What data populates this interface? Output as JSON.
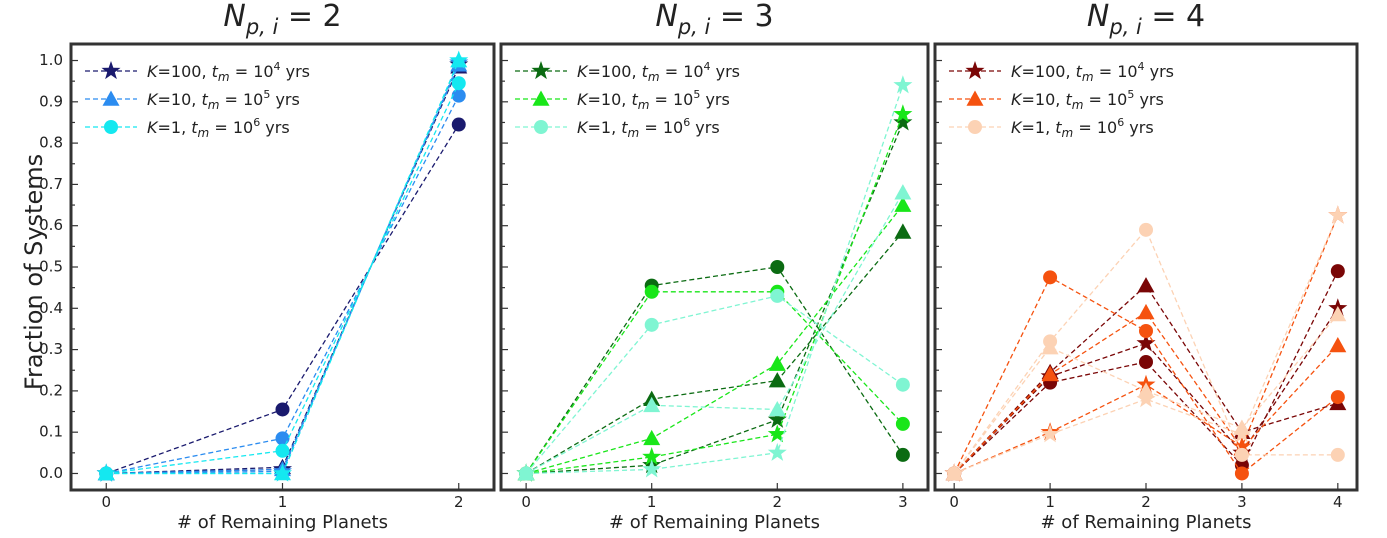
{
  "figure": {
    "ylabel": "Fraction of Systems",
    "xlabel": "# of Remaining Planets"
  },
  "chart_data": [
    {
      "type": "line",
      "title": {
        "main": "N",
        "sub": "p, i",
        "rhs": " = 2"
      },
      "xlabel": "# of Remaining Planets",
      "ylabel": "Fraction of Systems",
      "x": [
        0,
        1,
        2
      ],
      "xlim": [
        -0.2,
        2.2
      ],
      "ylim": [
        -0.04,
        1.04
      ],
      "yticks": [
        "0.0",
        "0.1",
        "0.2",
        "0.3",
        "0.4",
        "0.5",
        "0.6",
        "0.7",
        "0.8",
        "0.9",
        "1.0"
      ],
      "xticks": [
        "0",
        "1",
        "2"
      ],
      "legend": {
        "position": "top-left",
        "entries": [
          {
            "k": "K",
            "kv": "=100, ",
            "t": "t",
            "tsub": "m",
            "eq": " = 10",
            "exp": "4",
            "unit": " yrs",
            "marker": "star",
            "color": "#1a1a6e"
          },
          {
            "k": "K",
            "kv": "=10, ",
            "t": "t",
            "tsub": "m",
            "eq": " = 10",
            "exp": "5",
            "unit": " yrs",
            "marker": "triangle",
            "color": "#2b8cf0"
          },
          {
            "k": "K",
            "kv": "=1, ",
            "t": "t",
            "tsub": "m",
            "eq": " = 10",
            "exp": "6",
            "unit": " yrs",
            "marker": "circle",
            "color": "#14e8f0"
          }
        ]
      },
      "series": [
        {
          "marker": "circle",
          "color": "#1a1a6e",
          "values": [
            0.0,
            0.155,
            0.845
          ]
        },
        {
          "marker": "triangle",
          "color": "#1a1a6e",
          "values": [
            0.0,
            0.015,
            0.985
          ]
        },
        {
          "marker": "star",
          "color": "#1a1a6e",
          "values": [
            0.0,
            0.01,
            0.99
          ]
        },
        {
          "marker": "circle",
          "color": "#2b8cf0",
          "values": [
            0.0,
            0.085,
            0.915
          ]
        },
        {
          "marker": "triangle",
          "color": "#2b8cf0",
          "values": [
            0.0,
            0.01,
            0.99
          ]
        },
        {
          "marker": "star",
          "color": "#2b8cf0",
          "values": [
            0.0,
            0.005,
            0.995
          ]
        },
        {
          "marker": "circle",
          "color": "#14e8f0",
          "values": [
            0.0,
            0.055,
            0.945
          ]
        },
        {
          "marker": "triangle",
          "color": "#14e8f0",
          "values": [
            0.0,
            0.0,
            1.0
          ]
        },
        {
          "marker": "star",
          "color": "#14e8f0",
          "values": [
            0.0,
            0.0,
            1.0
          ]
        }
      ]
    },
    {
      "type": "line",
      "title": {
        "main": "N",
        "sub": "p, i",
        "rhs": " = 3"
      },
      "xlabel": "# of Remaining Planets",
      "x": [
        0,
        1,
        2,
        3
      ],
      "xlim": [
        -0.2,
        3.2
      ],
      "ylim": [
        -0.04,
        1.04
      ],
      "xticks": [
        "0",
        "1",
        "2",
        "3"
      ],
      "legend": {
        "position": "top-left",
        "entries": [
          {
            "k": "K",
            "kv": "=100, ",
            "t": "t",
            "tsub": "m",
            "eq": " = 10",
            "exp": "4",
            "unit": " yrs",
            "marker": "star",
            "color": "#0b6b12"
          },
          {
            "k": "K",
            "kv": "=10, ",
            "t": "t",
            "tsub": "m",
            "eq": " = 10",
            "exp": "5",
            "unit": " yrs",
            "marker": "triangle",
            "color": "#19e619"
          },
          {
            "k": "K",
            "kv": "=1, ",
            "t": "t",
            "tsub": "m",
            "eq": " = 10",
            "exp": "6",
            "unit": " yrs",
            "marker": "circle",
            "color": "#7ff5d2"
          }
        ]
      },
      "series": [
        {
          "marker": "circle",
          "color": "#0b6b12",
          "values": [
            0.0,
            0.455,
            0.5,
            0.045
          ]
        },
        {
          "marker": "triangle",
          "color": "#0b6b12",
          "values": [
            0.0,
            0.18,
            0.225,
            0.585
          ]
        },
        {
          "marker": "star",
          "color": "#0b6b12",
          "values": [
            0.0,
            0.02,
            0.13,
            0.85
          ]
        },
        {
          "marker": "circle",
          "color": "#19e619",
          "values": [
            0.0,
            0.44,
            0.44,
            0.12
          ]
        },
        {
          "marker": "triangle",
          "color": "#19e619",
          "values": [
            0.0,
            0.085,
            0.265,
            0.65
          ]
        },
        {
          "marker": "star",
          "color": "#19e619",
          "values": [
            0.0,
            0.04,
            0.095,
            0.87
          ]
        },
        {
          "marker": "circle",
          "color": "#7ff5d2",
          "values": [
            0.0,
            0.36,
            0.43,
            0.215
          ]
        },
        {
          "marker": "triangle",
          "color": "#7ff5d2",
          "values": [
            0.0,
            0.165,
            0.155,
            0.68
          ]
        },
        {
          "marker": "star",
          "color": "#7ff5d2",
          "values": [
            0.0,
            0.01,
            0.05,
            0.94
          ]
        }
      ]
    },
    {
      "type": "line",
      "title": {
        "main": "N",
        "sub": "p, i",
        "rhs": " = 4"
      },
      "xlabel": "# of Remaining Planets",
      "x": [
        0,
        1,
        2,
        3,
        4
      ],
      "xlim": [
        -0.2,
        4.2
      ],
      "ylim": [
        -0.04,
        1.04
      ],
      "xticks": [
        "0",
        "1",
        "2",
        "3",
        "4"
      ],
      "legend": {
        "position": "top-left",
        "entries": [
          {
            "k": "K",
            "kv": "=100, ",
            "t": "t",
            "tsub": "m",
            "eq": " = 10",
            "exp": "4",
            "unit": " yrs",
            "marker": "star",
            "color": "#7a0606"
          },
          {
            "k": "K",
            "kv": "=10, ",
            "t": "t",
            "tsub": "m",
            "eq": " = 10",
            "exp": "5",
            "unit": " yrs",
            "marker": "triangle",
            "color": "#f5520f"
          },
          {
            "k": "K",
            "kv": "=1, ",
            "t": "t",
            "tsub": "m",
            "eq": " = 10",
            "exp": "6",
            "unit": " yrs",
            "marker": "circle",
            "color": "#fcd2b4"
          }
        ]
      },
      "series": [
        {
          "marker": "circle",
          "color": "#7a0606",
          "values": [
            0.0,
            0.22,
            0.27,
            0.02,
            0.49
          ]
        },
        {
          "marker": "triangle",
          "color": "#7a0606",
          "values": [
            0.0,
            0.245,
            0.455,
            0.1,
            0.17
          ]
        },
        {
          "marker": "star",
          "color": "#7a0606",
          "values": [
            0.0,
            0.235,
            0.315,
            0.05,
            0.4
          ]
        },
        {
          "marker": "circle",
          "color": "#f5520f",
          "values": [
            0.0,
            0.475,
            0.345,
            0.0,
            0.185
          ]
        },
        {
          "marker": "triangle",
          "color": "#f5520f",
          "values": [
            0.0,
            0.24,
            0.39,
            0.06,
            0.31
          ]
        },
        {
          "marker": "star",
          "color": "#f5520f",
          "values": [
            0.0,
            0.1,
            0.215,
            0.065,
            0.625
          ]
        },
        {
          "marker": "circle",
          "color": "#fcd2b4",
          "values": [
            0.0,
            0.32,
            0.59,
            0.045,
            0.045
          ]
        },
        {
          "marker": "triangle",
          "color": "#fcd2b4",
          "values": [
            0.0,
            0.305,
            0.2,
            0.11,
            0.385
          ]
        },
        {
          "marker": "star",
          "color": "#fcd2b4",
          "values": [
            0.0,
            0.095,
            0.18,
            0.095,
            0.625
          ]
        }
      ]
    }
  ]
}
